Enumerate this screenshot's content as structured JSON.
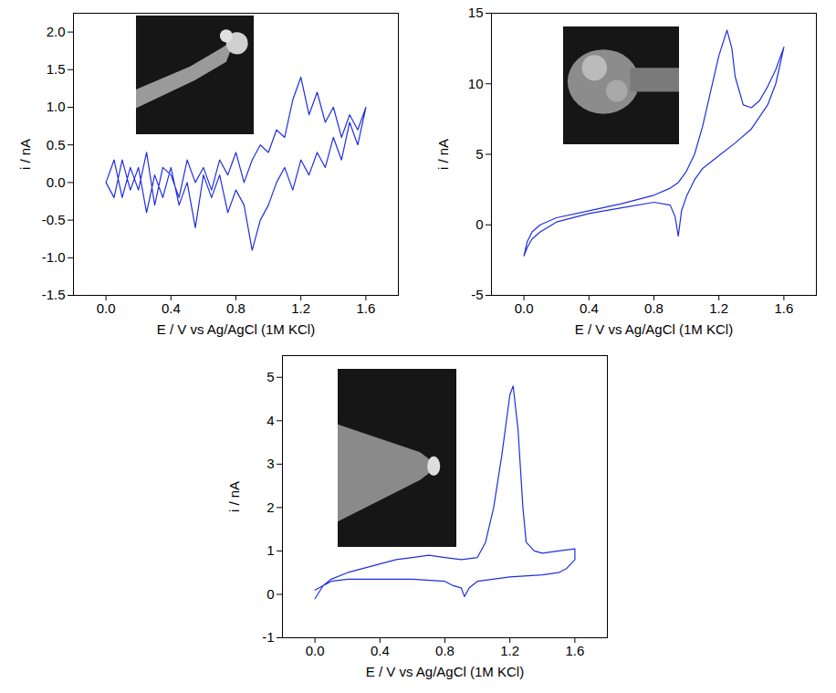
{
  "chart_data": [
    {
      "type": "line",
      "xlabel": "E / V vs Ag/AgCl (1M KCl)",
      "ylabel": "i / nA",
      "color": "#1f2fe0",
      "xlim": [
        -0.2,
        1.8
      ],
      "xticks": [
        {
          "value": 0,
          "label": "0.0"
        },
        0.4,
        0.8,
        1.2,
        1.6
      ],
      "ylim": [
        -1.5,
        2.25
      ],
      "yticks": [
        -1.5,
        {
          "value": -1,
          "label": "-1.0"
        },
        -0.5,
        {
          "value": 0,
          "label": "0.0"
        },
        0.5,
        {
          "value": 1,
          "label": "1.0"
        },
        1.5,
        {
          "value": 2,
          "label": "2.0"
        }
      ],
      "x": [
        0,
        0.05,
        0.1,
        0.15,
        0.2,
        0.25,
        0.3,
        0.35,
        0.4,
        0.45,
        0.5,
        0.55,
        0.6,
        0.65,
        0.7,
        0.75,
        0.8,
        0.85,
        0.9,
        0.95,
        1.0,
        1.05,
        1.1,
        1.15,
        1.2,
        1.25,
        1.3,
        1.35,
        1.4,
        1.45,
        1.5,
        1.55,
        1.6,
        1.55,
        1.5,
        1.45,
        1.4,
        1.35,
        1.3,
        1.25,
        1.2,
        1.15,
        1.1,
        1.05,
        1.0,
        0.95,
        0.9,
        0.85,
        0.8,
        0.75,
        0.7,
        0.65,
        0.6,
        0.55,
        0.5,
        0.45,
        0.4,
        0.35,
        0.3,
        0.25,
        0.2,
        0.15,
        0.1,
        0.05,
        0
      ],
      "values": [
        0.0,
        0.3,
        -0.2,
        0.2,
        -0.1,
        0.4,
        -0.3,
        0.2,
        0.1,
        -0.2,
        0.3,
        0.0,
        0.2,
        -0.1,
        0.3,
        0.1,
        0.4,
        0.0,
        0.3,
        0.5,
        0.4,
        0.7,
        0.6,
        1.1,
        1.4,
        0.9,
        1.2,
        0.8,
        1.0,
        0.6,
        0.9,
        0.7,
        1.0,
        0.5,
        0.8,
        0.3,
        0.6,
        0.2,
        0.4,
        0.1,
        0.3,
        -0.1,
        0.2,
        0.0,
        -0.3,
        -0.5,
        -0.9,
        -0.3,
        -0.1,
        -0.4,
        0.1,
        -0.2,
        0.1,
        -0.6,
        0.0,
        -0.3,
        0.2,
        -0.2,
        0.1,
        -0.4,
        0.2,
        -0.1,
        0.3,
        -0.2,
        0.0
      ]
    },
    {
      "type": "line",
      "xlabel": "E / V vs Ag/AgCl (1M KCl)",
      "ylabel": "i / nA",
      "color": "#1f2fe0",
      "xlim": [
        -0.2,
        1.8
      ],
      "xticks": [
        {
          "value": 0,
          "label": "0.0"
        },
        0.4,
        0.8,
        1.2,
        1.6
      ],
      "ylim": [
        -5,
        15
      ],
      "yticks": [
        -5,
        0,
        5,
        10,
        15
      ],
      "x": [
        0,
        0.02,
        0.05,
        0.1,
        0.2,
        0.4,
        0.6,
        0.8,
        0.9,
        0.95,
        1.0,
        1.05,
        1.1,
        1.15,
        1.2,
        1.25,
        1.28,
        1.3,
        1.35,
        1.4,
        1.45,
        1.5,
        1.55,
        1.6,
        1.55,
        1.5,
        1.4,
        1.3,
        1.2,
        1.1,
        1.05,
        1.0,
        0.97,
        0.95,
        0.93,
        0.9,
        0.8,
        0.6,
        0.4,
        0.2,
        0.1,
        0.05,
        0.02,
        0
      ],
      "values": [
        -2.2,
        -1.2,
        -0.5,
        0.0,
        0.5,
        1.0,
        1.5,
        2.1,
        2.6,
        3.0,
        3.8,
        5.0,
        7.0,
        9.5,
        12.0,
        13.8,
        12.5,
        10.5,
        8.5,
        8.3,
        8.8,
        9.8,
        11.0,
        12.6,
        10.0,
        8.5,
        6.8,
        5.8,
        4.9,
        4.0,
        3.2,
        2.0,
        1.0,
        -0.8,
        0.6,
        1.4,
        1.6,
        1.2,
        0.8,
        0.2,
        -0.5,
        -1.0,
        -1.6,
        -2.2
      ]
    },
    {
      "type": "line",
      "xlabel": "E / V vs Ag/AgCl (1M KCl)",
      "ylabel": "i / nA",
      "color": "#1f2fe0",
      "xlim": [
        -0.2,
        1.8
      ],
      "xticks": [
        {
          "value": 0,
          "label": "0.0"
        },
        0.4,
        0.8,
        1.2,
        1.6
      ],
      "ylim": [
        -1,
        5.5
      ],
      "yticks": [
        -1,
        0,
        1,
        2,
        3,
        4,
        5
      ],
      "x": [
        0,
        0.05,
        0.1,
        0.2,
        0.3,
        0.4,
        0.5,
        0.6,
        0.7,
        0.8,
        0.9,
        1.0,
        1.05,
        1.1,
        1.15,
        1.2,
        1.22,
        1.25,
        1.28,
        1.3,
        1.35,
        1.4,
        1.5,
        1.6,
        1.6,
        1.55,
        1.5,
        1.4,
        1.2,
        1.0,
        0.95,
        0.92,
        0.9,
        0.85,
        0.8,
        0.6,
        0.4,
        0.2,
        0.1,
        0.05,
        0
      ],
      "values": [
        -0.1,
        0.2,
        0.35,
        0.5,
        0.6,
        0.7,
        0.8,
        0.85,
        0.9,
        0.85,
        0.8,
        0.85,
        1.2,
        2.0,
        3.2,
        4.6,
        4.8,
        3.8,
        2.0,
        1.2,
        1.0,
        0.95,
        1.0,
        1.05,
        0.8,
        0.6,
        0.5,
        0.45,
        0.4,
        0.3,
        0.15,
        -0.05,
        0.15,
        0.2,
        0.3,
        0.35,
        0.35,
        0.35,
        0.3,
        0.2,
        0.1
      ]
    }
  ]
}
